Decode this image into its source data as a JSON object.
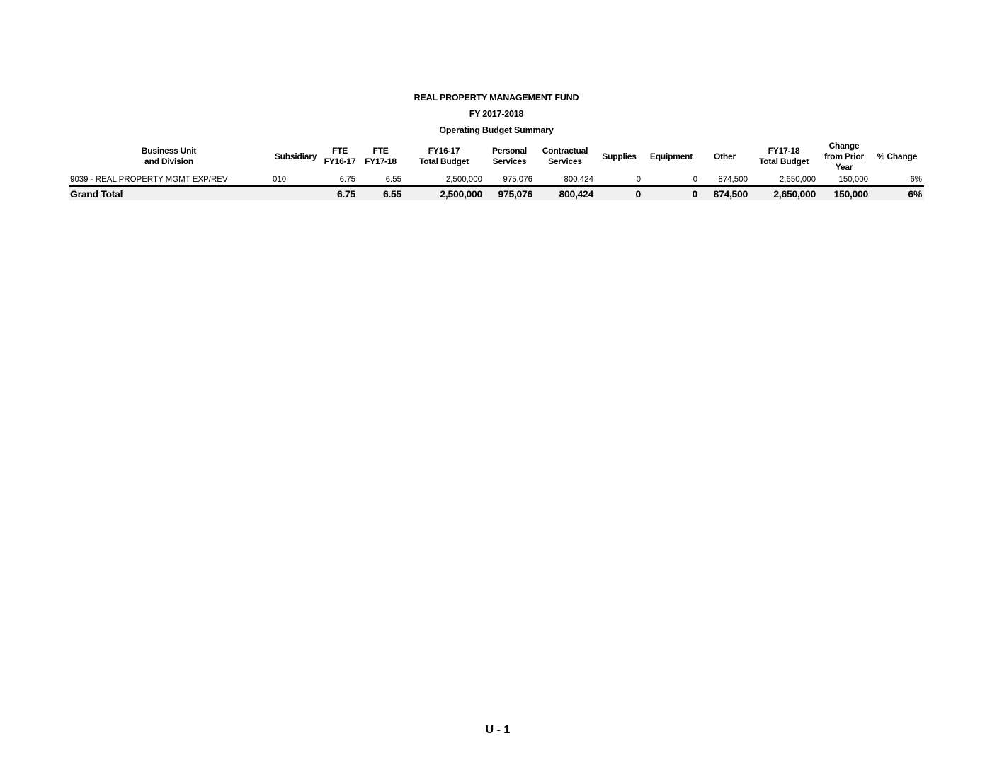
{
  "header": {
    "line1": "REAL PROPERTY MANAGEMENT FUND",
    "line2": "FY 2017-2018",
    "line3": "Operating Budget Summary"
  },
  "table": {
    "columns": [
      [
        "Business Unit",
        "and Division"
      ],
      [
        "Subsidiary"
      ],
      [
        "FTE",
        "FY16-17"
      ],
      [
        "FTE",
        "FY17-18"
      ],
      [
        "FY16-17",
        "Total Budget"
      ],
      [
        "Personal",
        "Services"
      ],
      [
        "Contractual",
        "Services"
      ],
      [
        "Supplies"
      ],
      [
        "Equipment"
      ],
      [
        "Other"
      ],
      [
        "FY17-18",
        "Total Budget"
      ],
      [
        "Change",
        "from Prior",
        "Year"
      ],
      [
        "% Change"
      ]
    ],
    "rows": [
      [
        "9039 - REAL PROPERTY MGMT EXP/REV",
        "010",
        "6.75",
        "6.55",
        "2,500,000",
        "975,076",
        "800,424",
        "0",
        "0",
        "874,500",
        "2,650,000",
        "150,000",
        "6%"
      ]
    ],
    "total": [
      "Grand Total",
      "",
      "6.75",
      "6.55",
      "2,500,000",
      "975,076",
      "800,424",
      "0",
      "0",
      "874,500",
      "2,650,000",
      "150,000",
      "6%"
    ]
  },
  "footer": {
    "page": "U - 1"
  }
}
